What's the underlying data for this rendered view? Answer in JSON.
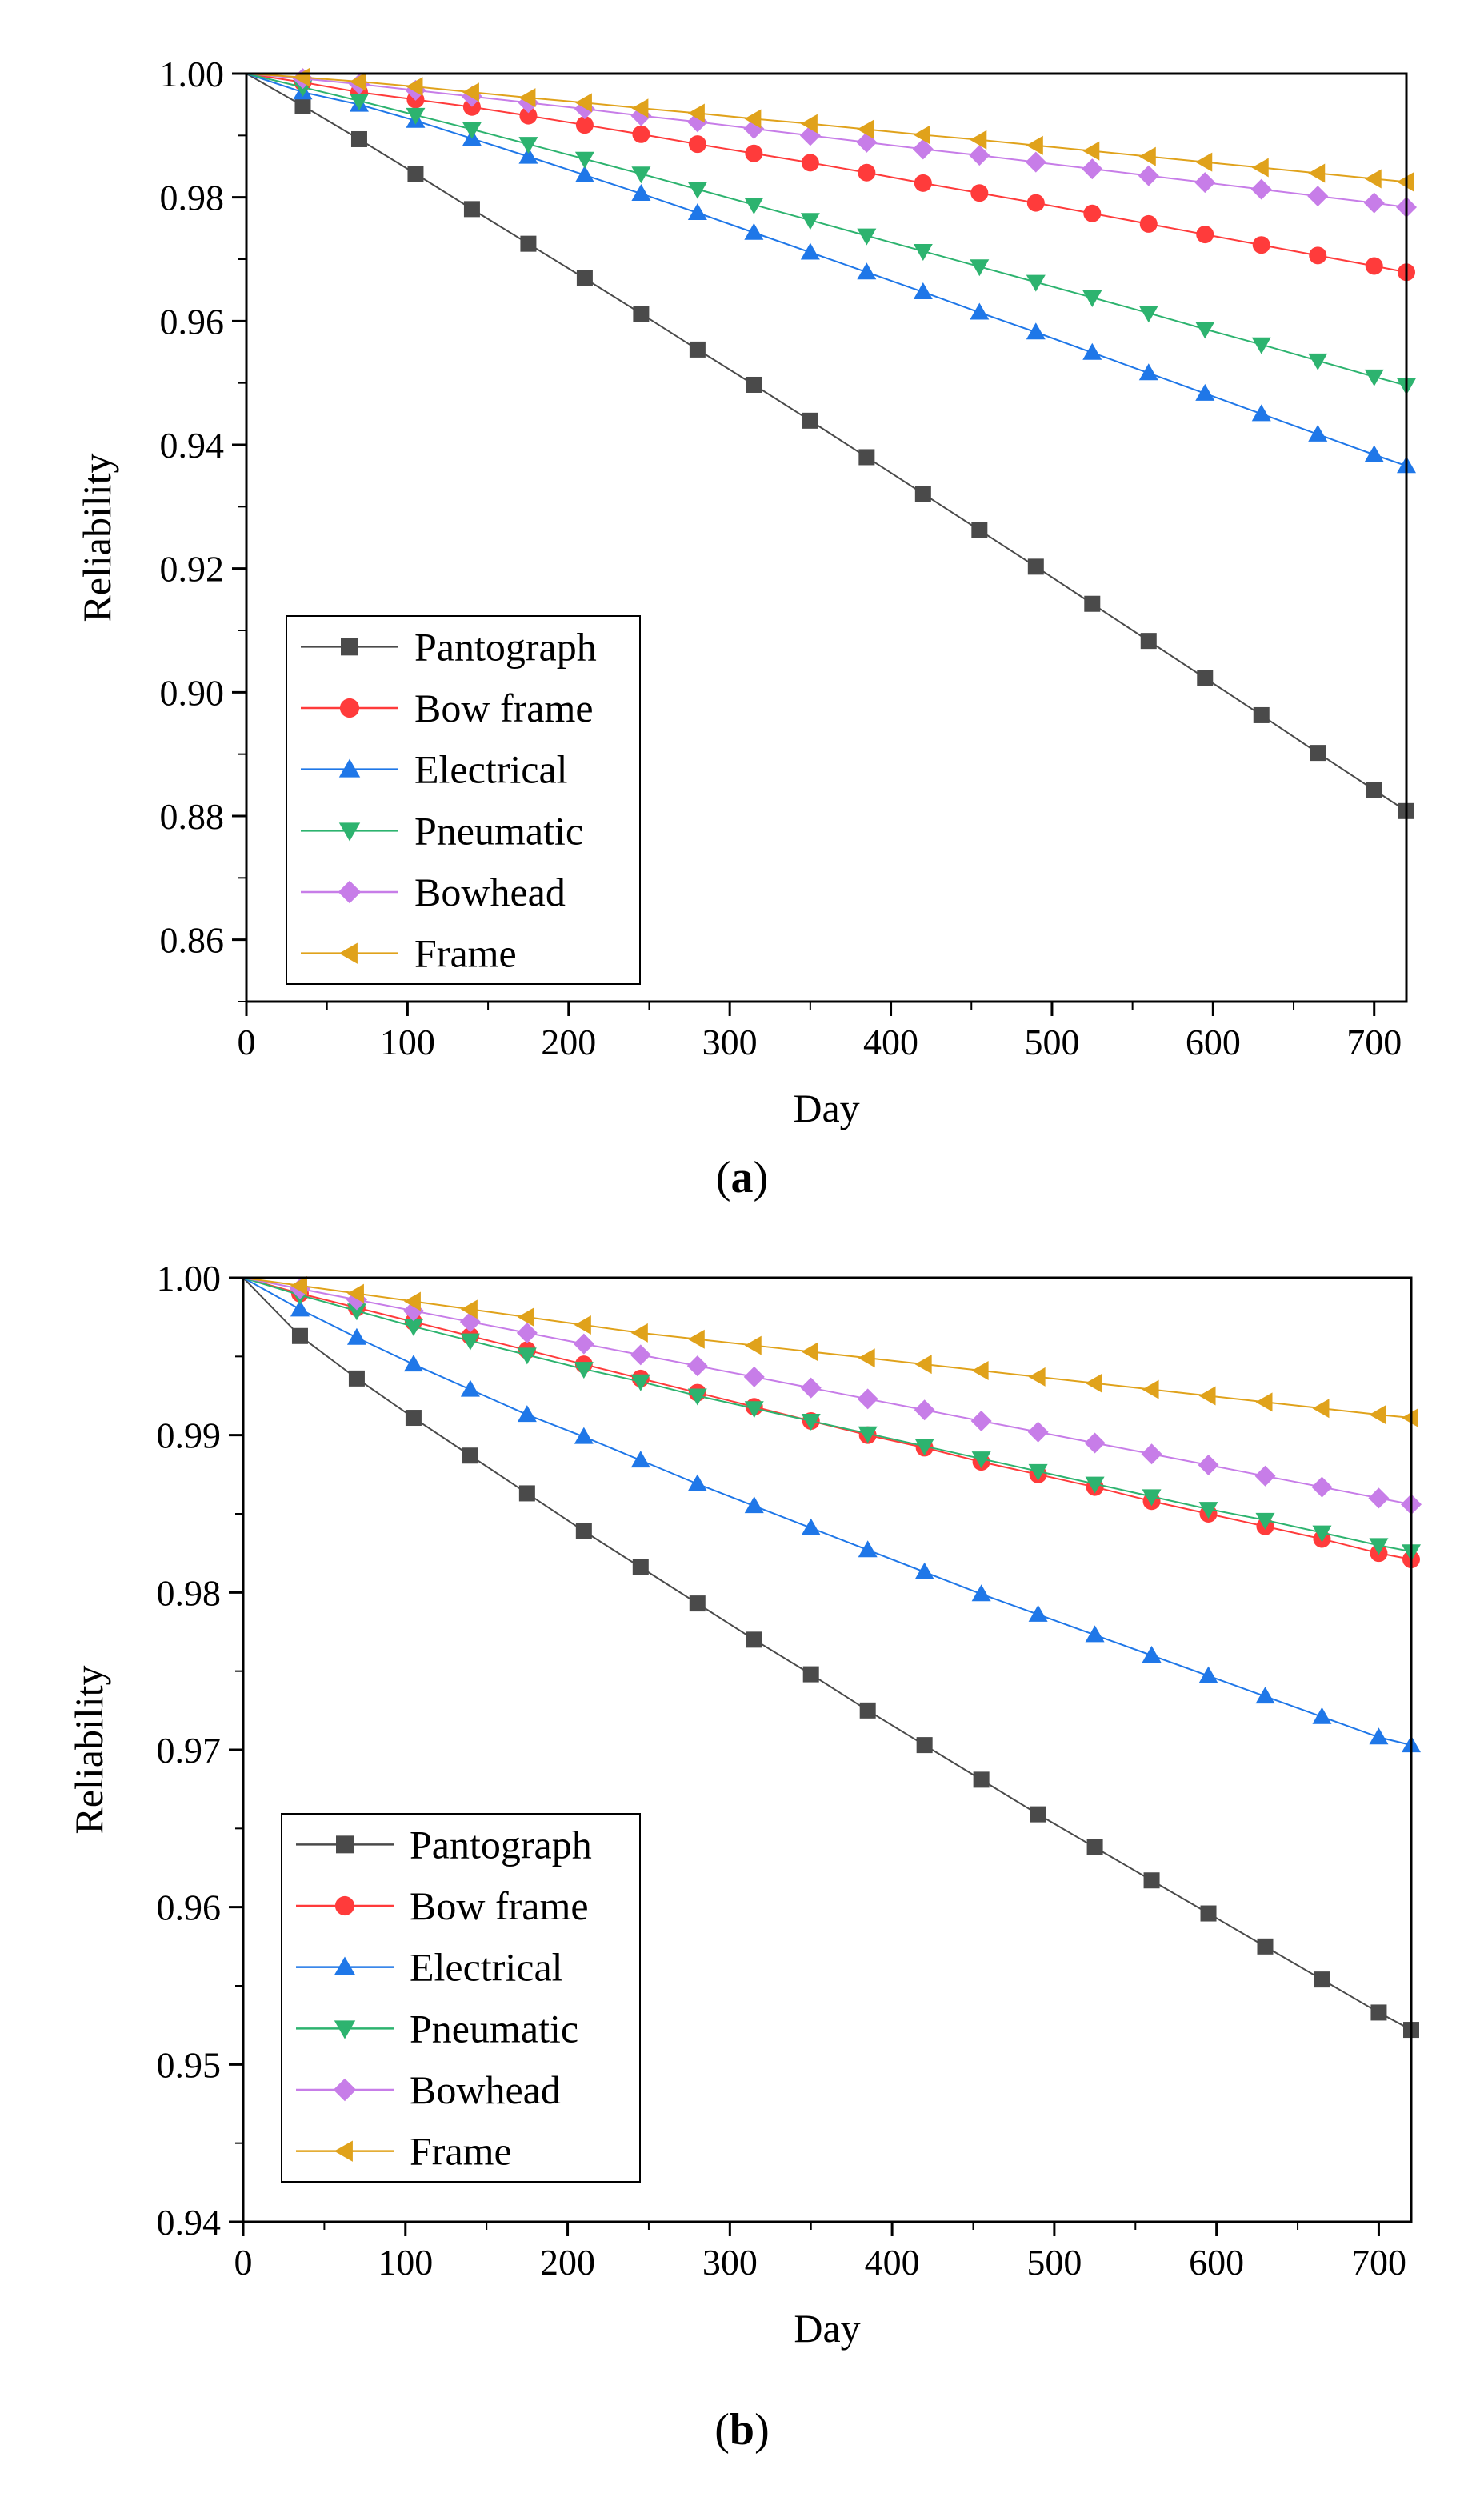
{
  "figure": {
    "panels": [
      {
        "caption_open": "(",
        "caption_letter": "a",
        "caption_close": ")"
      },
      {
        "caption_open": "(",
        "caption_letter": "b",
        "caption_close": ")"
      }
    ]
  },
  "chart_data": [
    {
      "type": "line",
      "xlabel": "Day",
      "ylabel": "Reliability",
      "xlim": [
        0,
        720
      ],
      "ylim": [
        0.85,
        1.0
      ],
      "xticks": [
        0,
        100,
        200,
        300,
        400,
        500,
        600,
        700
      ],
      "xtick_labels": [
        "0",
        "100",
        "200",
        "300",
        "400",
        "500",
        "600",
        "700"
      ],
      "yticks": [
        0.86,
        0.88,
        0.9,
        0.92,
        0.94,
        0.96,
        0.98,
        1.0
      ],
      "ytick_labels": [
        "0.86",
        "0.88",
        "0.90",
        "0.92",
        "0.94",
        "0.96",
        "0.98",
        "1.00"
      ],
      "grid": false,
      "legend_position": "bottom-left",
      "x": [
        0,
        35,
        70,
        105,
        140,
        175,
        210,
        245,
        280,
        315,
        350,
        385,
        420,
        455,
        490,
        525,
        560,
        595,
        630,
        665,
        700,
        720
      ],
      "series": [
        {
          "name": "Pantograph",
          "color": "#4a4a4a",
          "marker": "square",
          "values": [
            1.0,
            0.9948,
            0.9894,
            0.9838,
            0.9781,
            0.9725,
            0.9669,
            0.9612,
            0.9554,
            0.9497,
            0.9439,
            0.938,
            0.9321,
            0.9262,
            0.9203,
            0.9143,
            0.9083,
            0.9023,
            0.8963,
            0.8902,
            0.8842,
            0.8808
          ]
        },
        {
          "name": "Bow frame",
          "color": "#ff3b3b",
          "marker": "circle",
          "values": [
            1.0,
            0.9986,
            0.997,
            0.9958,
            0.9946,
            0.9932,
            0.9917,
            0.9902,
            0.9886,
            0.9871,
            0.9856,
            0.984,
            0.9823,
            0.9807,
            0.9791,
            0.9774,
            0.9757,
            0.974,
            0.9723,
            0.9706,
            0.9689,
            0.9679
          ]
        },
        {
          "name": "Electrical",
          "color": "#1f77e8",
          "marker": "triangle-up",
          "values": [
            1.0,
            0.997,
            0.995,
            0.9924,
            0.9895,
            0.9866,
            0.9836,
            0.9806,
            0.9775,
            0.9743,
            0.9711,
            0.9679,
            0.9647,
            0.9614,
            0.9582,
            0.9549,
            0.9516,
            0.9483,
            0.945,
            0.9417,
            0.9384,
            0.9366
          ]
        },
        {
          "name": "Pneumatic",
          "color": "#2db36f",
          "marker": "triangle-down",
          "values": [
            1.0,
            0.9978,
            0.9956,
            0.9933,
            0.991,
            0.9886,
            0.9862,
            0.9838,
            0.9813,
            0.9788,
            0.9763,
            0.9738,
            0.9713,
            0.9688,
            0.9663,
            0.9638,
            0.9613,
            0.9587,
            0.9562,
            0.9536,
            0.951,
            0.9496
          ]
        },
        {
          "name": "Bowhead",
          "color": "#c77de8",
          "marker": "diamond",
          "values": [
            1.0,
            0.9992,
            0.9983,
            0.9973,
            0.9963,
            0.9953,
            0.9943,
            0.9932,
            0.9922,
            0.9911,
            0.99,
            0.9889,
            0.9878,
            0.9868,
            0.9857,
            0.9846,
            0.9835,
            0.9824,
            0.9813,
            0.9802,
            0.9791,
            0.9784
          ]
        },
        {
          "name": "Frame",
          "color": "#e0a21b",
          "marker": "triangle-left",
          "values": [
            1.0,
            0.9994,
            0.9987,
            0.9979,
            0.997,
            0.9961,
            0.9953,
            0.9944,
            0.9936,
            0.9927,
            0.9919,
            0.991,
            0.9901,
            0.9893,
            0.9884,
            0.9875,
            0.9866,
            0.9857,
            0.9848,
            0.9839,
            0.983,
            0.9825
          ]
        }
      ]
    },
    {
      "type": "line",
      "xlabel": "Day",
      "ylabel": "Reliability",
      "xlim": [
        0,
        720
      ],
      "ylim": [
        0.94,
        1.0
      ],
      "xticks": [
        0,
        100,
        200,
        300,
        400,
        500,
        600,
        700
      ],
      "xtick_labels": [
        "0",
        "100",
        "200",
        "300",
        "400",
        "500",
        "600",
        "700"
      ],
      "yticks": [
        0.94,
        0.95,
        0.96,
        0.97,
        0.98,
        0.99,
        1.0
      ],
      "ytick_labels": [
        "0.94",
        "0.95",
        "0.96",
        "0.97",
        "0.98",
        "0.99",
        "1.00"
      ],
      "grid": false,
      "legend_position": "bottom-left",
      "x": [
        0,
        35,
        70,
        105,
        140,
        175,
        210,
        245,
        280,
        315,
        350,
        385,
        420,
        455,
        490,
        525,
        560,
        595,
        630,
        665,
        700,
        720
      ],
      "series": [
        {
          "name": "Pantograph",
          "color": "#4a4a4a",
          "marker": "square",
          "values": [
            1.0,
            0.9963,
            0.9936,
            0.9911,
            0.9887,
            0.9863,
            0.9839,
            0.9816,
            0.9793,
            0.977,
            0.9748,
            0.9725,
            0.9703,
            0.9681,
            0.9659,
            0.9638,
            0.9617,
            0.9596,
            0.9575,
            0.9554,
            0.9533,
            0.9522
          ]
        },
        {
          "name": "Bow frame",
          "color": "#ff3b3b",
          "marker": "circle",
          "values": [
            1.0,
            0.999,
            0.9981,
            0.9972,
            0.9963,
            0.9954,
            0.9945,
            0.9936,
            0.9927,
            0.9918,
            0.9909,
            0.99,
            0.9892,
            0.9883,
            0.9875,
            0.9867,
            0.9858,
            0.985,
            0.9842,
            0.9834,
            0.9825,
            0.9821
          ]
        },
        {
          "name": "Electrical",
          "color": "#1f77e8",
          "marker": "triangle-up",
          "values": [
            1.0,
            0.998,
            0.9962,
            0.9945,
            0.9929,
            0.9913,
            0.9899,
            0.9884,
            0.9869,
            0.9855,
            0.9841,
            0.9827,
            0.9813,
            0.9799,
            0.9786,
            0.9773,
            0.976,
            0.9747,
            0.9734,
            0.9721,
            0.9708,
            0.9703
          ]
        },
        {
          "name": "Pneumatic",
          "color": "#2db36f",
          "marker": "triangle-down",
          "values": [
            1.0,
            0.9989,
            0.9979,
            0.9969,
            0.996,
            0.9951,
            0.9942,
            0.9934,
            0.9925,
            0.9917,
            0.9909,
            0.9901,
            0.9893,
            0.9885,
            0.9877,
            0.9869,
            0.9861,
            0.9853,
            0.9846,
            0.9838,
            0.983,
            0.9826
          ]
        },
        {
          "name": "Bowhead",
          "color": "#c77de8",
          "marker": "diamond",
          "values": [
            1.0,
            0.9993,
            0.9986,
            0.9979,
            0.9972,
            0.9965,
            0.9958,
            0.9951,
            0.9944,
            0.9937,
            0.993,
            0.9923,
            0.9916,
            0.9909,
            0.9902,
            0.9895,
            0.9888,
            0.9881,
            0.9874,
            0.9867,
            0.986,
            0.9856
          ]
        },
        {
          "name": "Frame",
          "color": "#e0a21b",
          "marker": "triangle-left",
          "values": [
            1.0,
            0.9995,
            0.999,
            0.9985,
            0.998,
            0.9975,
            0.997,
            0.9965,
            0.9961,
            0.9957,
            0.9953,
            0.9949,
            0.9945,
            0.9941,
            0.9937,
            0.9933,
            0.9929,
            0.9925,
            0.9921,
            0.9917,
            0.9913,
            0.9911
          ]
        }
      ]
    }
  ]
}
